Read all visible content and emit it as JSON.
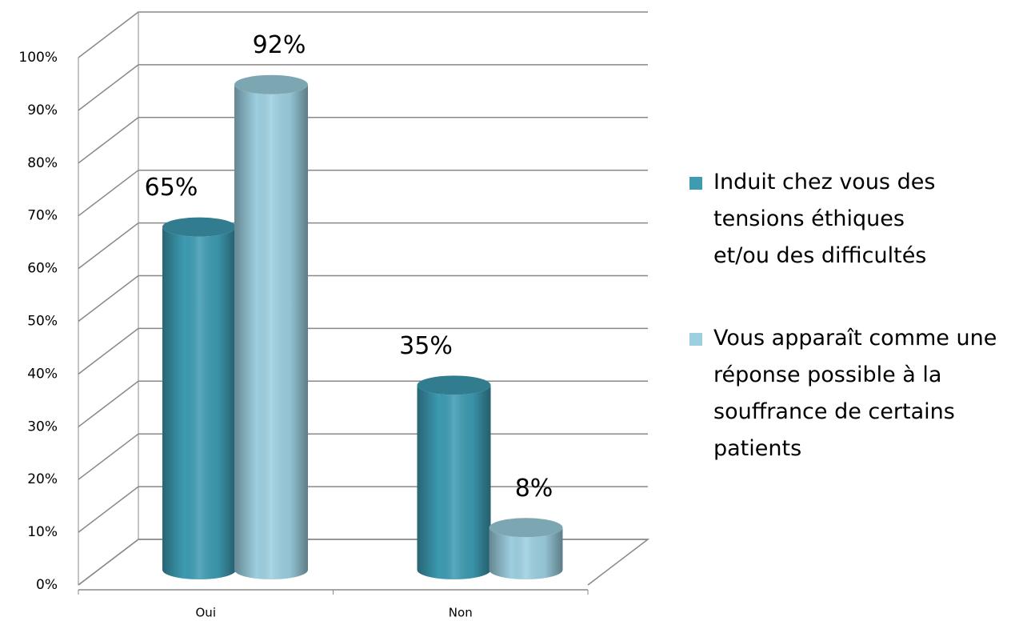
{
  "chart_data": {
    "type": "bar3d",
    "categories": [
      "Oui",
      "Non"
    ],
    "series": [
      {
        "name": "Induit chez vous des tensions éthiques et/ou des difficultés",
        "color": "#3d9bb2",
        "values": [
          65,
          35
        ],
        "value_labels": [
          "65%",
          "35%"
        ]
      },
      {
        "name": "Vous apparaît comme une réponse possible à la souffrance de certains patients",
        "color": "#9ccfe0",
        "values": [
          92,
          8
        ],
        "value_labels": [
          "92%",
          "8%"
        ]
      }
    ],
    "ylim": [
      0,
      100
    ],
    "yticks": [
      {
        "value": 0,
        "label": "0%"
      },
      {
        "value": 10,
        "label": "10%"
      },
      {
        "value": 20,
        "label": "20%"
      },
      {
        "value": 30,
        "label": "30%"
      },
      {
        "value": 40,
        "label": "40%"
      },
      {
        "value": 50,
        "label": "50%"
      },
      {
        "value": 60,
        "label": "60%"
      },
      {
        "value": 70,
        "label": "70%"
      },
      {
        "value": 80,
        "label": "80%"
      },
      {
        "value": 90,
        "label": "90%"
      },
      {
        "value": 100,
        "label": "100%"
      }
    ],
    "grid": true,
    "legend": "right"
  }
}
